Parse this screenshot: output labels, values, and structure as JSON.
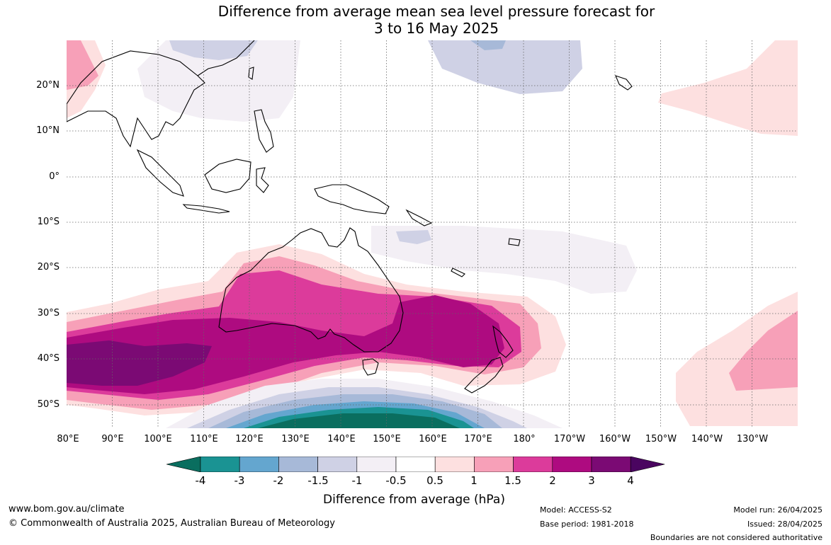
{
  "title": {
    "line1": "Difference from average mean sea level pressure forecast for",
    "line2": "3 to 16 May 2025"
  },
  "map": {
    "lat_labels": [
      "20°N",
      "10°N",
      "0°",
      "10°S",
      "20°S",
      "30°S",
      "40°S",
      "50°S"
    ],
    "lon_labels": [
      "80°E",
      "90°E",
      "100°E",
      "110°E",
      "120°E",
      "130°E",
      "140°E",
      "150°E",
      "160°E",
      "170°E",
      "180°",
      "170°W",
      "160°W",
      "150°W",
      "140°W",
      "130°W"
    ]
  },
  "colorbar": {
    "ticks": [
      "-4",
      "-3",
      "-2",
      "-1.5",
      "-1",
      "-0.5",
      "0.5",
      "1",
      "1.5",
      "2",
      "3",
      "4"
    ],
    "colors": [
      "#0a6e5f",
      "#1a9393",
      "#64a6cf",
      "#a7b9d8",
      "#cfd1e5",
      "#f3eff5",
      "#ffffff",
      "#fde0e0",
      "#f7a0b8",
      "#dc3b9b",
      "#ae0b80",
      "#7b0a74",
      "#4a0560"
    ],
    "label": "Difference from average (hPa)"
  },
  "footer": {
    "website": "www.bom.gov.au/climate",
    "copyright": "© Commonwealth of Australia 2025, Australian Bureau of Meteorology",
    "model": "Model: ACCESS-S2",
    "base_period": "Base period: 1981-2018",
    "model_run": "Model run: 26/04/2025",
    "issued": "Issued: 28/04/2025",
    "disclaimer": "Boundaries are not considered authoritative"
  }
}
